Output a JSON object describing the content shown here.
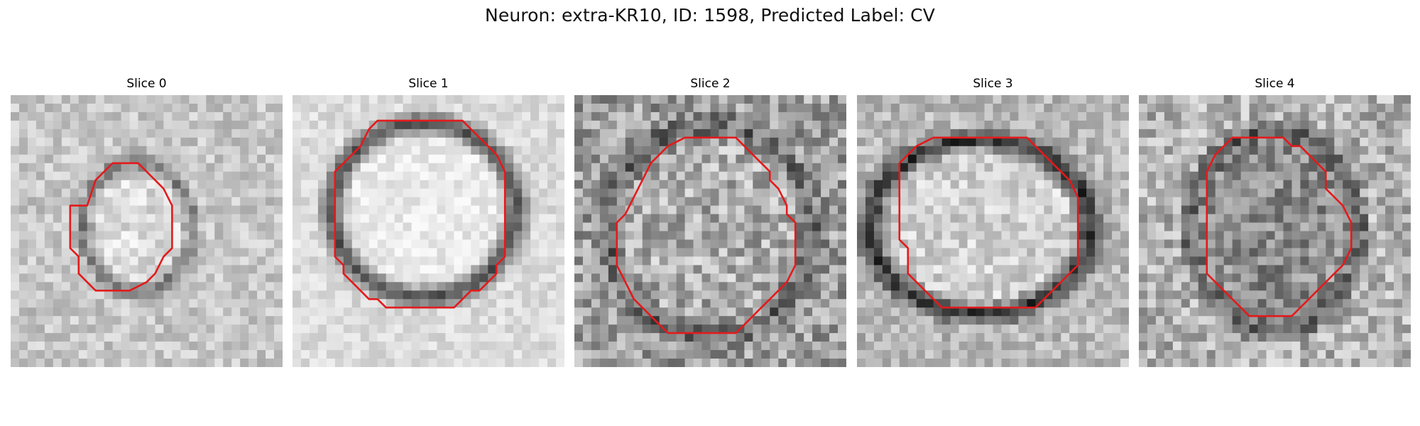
{
  "figure": {
    "title": "Neuron: extra-KR10, ID: 1598, Predicted Label: CV"
  },
  "panels": [
    {
      "title": "Slice 0"
    },
    {
      "title": "Slice 1"
    },
    {
      "title": "Slice 2"
    },
    {
      "title": "Slice 3"
    },
    {
      "title": "Slice 4"
    }
  ],
  "overlay": {
    "contour_color": "#e31a1c",
    "colormap": "gray"
  }
}
